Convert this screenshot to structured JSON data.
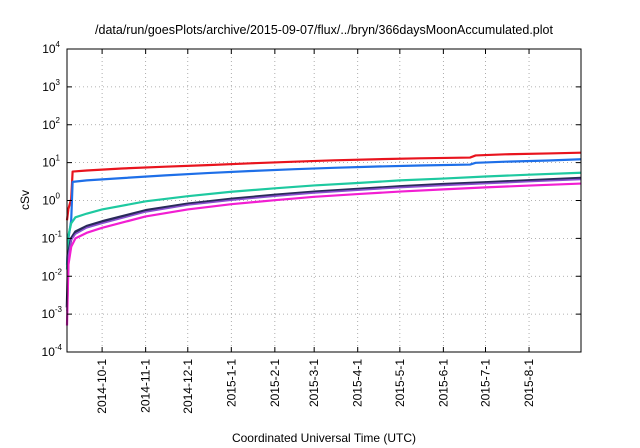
{
  "chart_data": {
    "type": "line",
    "title": "/data/run/goesPlots/archive/2015-09-07/flux/../bryn/366daysMoonAccumulated.plot",
    "xlabel": "Coordinated Universal Time (UTC)",
    "ylabel": "cSv",
    "y_scale": "log",
    "grid": true,
    "legend": "none",
    "xlim": [
      "2014-09-06",
      "2015-09-07"
    ],
    "ylim": [
      0.0001,
      10000
    ],
    "x_ticks": [
      "2014-10-1",
      "2014-11-1",
      "2014-12-1",
      "2015-1-1",
      "2015-2-1",
      "2015-3-1",
      "2015-4-1",
      "2015-5-1",
      "2015-6-1",
      "2015-7-1",
      "2015-8-1"
    ],
    "y_ticks": [
      {
        "base": "10",
        "exp": "-4",
        "value": 0.0001
      },
      {
        "base": "10",
        "exp": "-3",
        "value": 0.001
      },
      {
        "base": "10",
        "exp": "-2",
        "value": 0.01
      },
      {
        "base": "10",
        "exp": "-1",
        "value": 0.1
      },
      {
        "base": "10",
        "exp": "0",
        "value": 1
      },
      {
        "base": "10",
        "exp": "1",
        "value": 10
      },
      {
        "base": "10",
        "exp": "2",
        "value": 100
      },
      {
        "base": "10",
        "exp": "3",
        "value": 1000
      },
      {
        "base": "10",
        "exp": "4",
        "value": 10000
      }
    ],
    "series": [
      {
        "color": "#e8141e",
        "width": 2.2,
        "points": [
          [
            "2014-09-06",
            0.3
          ],
          [
            "2014-09-07",
            0.6
          ],
          [
            "2014-09-09",
            1.1
          ],
          [
            "2014-09-10",
            5.8
          ],
          [
            "2014-09-20",
            6.2
          ],
          [
            "2014-10-15",
            7.0
          ],
          [
            "2014-11-15",
            7.8
          ],
          [
            "2014-12-15",
            8.6
          ],
          [
            "2015-01-15",
            9.6
          ],
          [
            "2015-02-15",
            10.6
          ],
          [
            "2015-03-15",
            11.5
          ],
          [
            "2015-04-15",
            12.3
          ],
          [
            "2015-05-15",
            13.0
          ],
          [
            "2015-06-20",
            13.6
          ],
          [
            "2015-06-24",
            15.5
          ],
          [
            "2015-07-15",
            16.6
          ],
          [
            "2015-08-15",
            17.5
          ],
          [
            "2015-09-07",
            18.3
          ]
        ]
      },
      {
        "color": "#1e6fe8",
        "width": 2.2,
        "points": [
          [
            "2014-09-06",
            0.02
          ],
          [
            "2014-09-07",
            0.1
          ],
          [
            "2014-09-09",
            0.3
          ],
          [
            "2014-09-10",
            3.1
          ],
          [
            "2014-09-20",
            3.4
          ],
          [
            "2014-10-15",
            3.9
          ],
          [
            "2014-11-15",
            4.6
          ],
          [
            "2014-12-15",
            5.3
          ],
          [
            "2015-01-15",
            6.0
          ],
          [
            "2015-02-15",
            6.7
          ],
          [
            "2015-03-15",
            7.3
          ],
          [
            "2015-04-15",
            7.9
          ],
          [
            "2015-05-15",
            8.4
          ],
          [
            "2015-06-20",
            8.9
          ],
          [
            "2015-06-24",
            9.9
          ],
          [
            "2015-07-15",
            10.6
          ],
          [
            "2015-08-15",
            11.4
          ],
          [
            "2015-09-07",
            12.3
          ]
        ]
      },
      {
        "color": "#1ec9a0",
        "width": 2.2,
        "points": [
          [
            "2014-09-06",
            0.015
          ],
          [
            "2014-09-07",
            0.12
          ],
          [
            "2014-09-09",
            0.25
          ],
          [
            "2014-09-12",
            0.36
          ],
          [
            "2014-09-20",
            0.45
          ],
          [
            "2014-10-01",
            0.58
          ],
          [
            "2014-11-01",
            0.95
          ],
          [
            "2014-12-01",
            1.3
          ],
          [
            "2015-01-01",
            1.7
          ],
          [
            "2015-02-01",
            2.1
          ],
          [
            "2015-03-01",
            2.5
          ],
          [
            "2015-04-01",
            2.9
          ],
          [
            "2015-05-01",
            3.4
          ],
          [
            "2015-06-01",
            3.8
          ],
          [
            "2015-07-01",
            4.3
          ],
          [
            "2015-08-01",
            4.8
          ],
          [
            "2015-09-07",
            5.4
          ]
        ]
      },
      {
        "color": "#2a2a5a",
        "width": 2.6,
        "points": [
          [
            "2014-09-06",
            0.0015
          ],
          [
            "2014-09-07",
            0.04
          ],
          [
            "2014-09-09",
            0.1
          ],
          [
            "2014-09-12",
            0.15
          ],
          [
            "2014-09-20",
            0.21
          ],
          [
            "2014-10-01",
            0.28
          ],
          [
            "2014-11-01",
            0.55
          ],
          [
            "2014-12-01",
            0.82
          ],
          [
            "2015-01-01",
            1.1
          ],
          [
            "2015-02-01",
            1.4
          ],
          [
            "2015-03-01",
            1.7
          ],
          [
            "2015-04-01",
            2.0
          ],
          [
            "2015-05-01",
            2.35
          ],
          [
            "2015-06-01",
            2.7
          ],
          [
            "2015-07-01",
            3.0
          ],
          [
            "2015-08-01",
            3.4
          ],
          [
            "2015-09-07",
            3.9
          ]
        ]
      },
      {
        "color": "#8a4fd0",
        "width": 1.6,
        "points": [
          [
            "2014-09-06",
            0.0012
          ],
          [
            "2014-09-07",
            0.035
          ],
          [
            "2014-09-09",
            0.09
          ],
          [
            "2014-09-12",
            0.13
          ],
          [
            "2014-09-20",
            0.19
          ],
          [
            "2014-10-01",
            0.25
          ],
          [
            "2014-11-01",
            0.5
          ],
          [
            "2014-12-01",
            0.76
          ],
          [
            "2015-01-01",
            1.02
          ],
          [
            "2015-02-01",
            1.3
          ],
          [
            "2015-03-01",
            1.58
          ],
          [
            "2015-04-01",
            1.87
          ],
          [
            "2015-05-01",
            2.2
          ],
          [
            "2015-06-01",
            2.5
          ],
          [
            "2015-07-01",
            2.8
          ],
          [
            "2015-08-01",
            3.15
          ],
          [
            "2015-09-07",
            3.6
          ]
        ]
      },
      {
        "color": "#f21ed2",
        "width": 2.2,
        "points": [
          [
            "2014-09-06",
            0.0005
          ],
          [
            "2014-09-07",
            0.02
          ],
          [
            "2014-09-09",
            0.06
          ],
          [
            "2014-09-12",
            0.1
          ],
          [
            "2014-09-20",
            0.14
          ],
          [
            "2014-10-01",
            0.19
          ],
          [
            "2014-11-01",
            0.38
          ],
          [
            "2014-12-01",
            0.58
          ],
          [
            "2015-01-01",
            0.8
          ],
          [
            "2015-02-01",
            1.02
          ],
          [
            "2015-03-01",
            1.25
          ],
          [
            "2015-04-01",
            1.48
          ],
          [
            "2015-05-01",
            1.72
          ],
          [
            "2015-06-01",
            1.97
          ],
          [
            "2015-07-01",
            2.22
          ],
          [
            "2015-08-01",
            2.48
          ],
          [
            "2015-09-07",
            2.8
          ]
        ]
      }
    ]
  }
}
